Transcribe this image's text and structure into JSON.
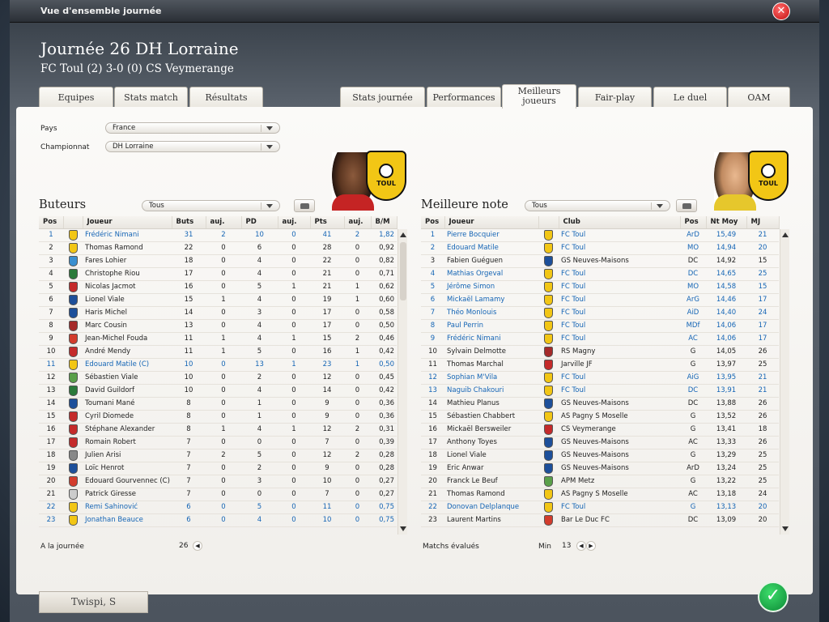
{
  "window": {
    "title": "Vue d'ensemble journée",
    "close_label": "✕"
  },
  "header": {
    "title": "Journée 26 DH Lorraine",
    "subtitle": "FC Toul (2) 3-0 (0) CS Veymerange"
  },
  "tabs_left": [
    "Equipes",
    "Stats match",
    "Résultats"
  ],
  "tabs_right": [
    "Stats journée",
    "Performances",
    "Meilleurs joueurs",
    "Fair-play",
    "Le duel",
    "OAM"
  ],
  "active_tab": "Meilleurs joueurs",
  "filters": {
    "country_label": "Pays",
    "country_value": "France",
    "championship_label": "Championnat",
    "championship_value": "DH Lorraine"
  },
  "club_crest_text": "TOUL",
  "scorers": {
    "title": "Buteurs",
    "filter_value": "Tous",
    "columns": [
      "Pos",
      "",
      "Joueur",
      "Buts",
      "auj.",
      "PD",
      "auj.",
      "Pts",
      "auj.",
      "B/M"
    ],
    "rows": [
      {
        "pos": "1",
        "name": "Frédéric Nimani",
        "b": "31",
        "ba": "2",
        "pd": "10",
        "pda": "0",
        "pts": "41",
        "pa": "2",
        "bm": "1,82",
        "hl": true,
        "club": "#f2c615"
      },
      {
        "pos": "2",
        "name": "Thomas Ramond",
        "b": "22",
        "ba": "0",
        "pd": "6",
        "pda": "0",
        "pts": "28",
        "pa": "0",
        "bm": "0,92",
        "hl": false,
        "club": "#f2c615"
      },
      {
        "pos": "3",
        "name": "Fares Lohier",
        "b": "18",
        "ba": "0",
        "pd": "4",
        "pda": "0",
        "pts": "22",
        "pa": "0",
        "bm": "0,82",
        "hl": false,
        "club": "#3a8fd0"
      },
      {
        "pos": "4",
        "name": "Christophe Riou",
        "b": "17",
        "ba": "0",
        "pd": "4",
        "pda": "0",
        "pts": "21",
        "pa": "0",
        "bm": "0,71",
        "hl": false,
        "club": "#2a7a3a"
      },
      {
        "pos": "5",
        "name": "Nicolas Jacmot",
        "b": "16",
        "ba": "0",
        "pd": "5",
        "pda": "1",
        "pts": "21",
        "pa": "1",
        "bm": "0,62",
        "hl": false,
        "club": "#c42a2a"
      },
      {
        "pos": "6",
        "name": "Lionel Viale",
        "b": "15",
        "ba": "1",
        "pd": "4",
        "pda": "0",
        "pts": "19",
        "pa": "1",
        "bm": "0,60",
        "hl": false,
        "club": "#1d4f9a"
      },
      {
        "pos": "7",
        "name": "Haris Michel",
        "b": "14",
        "ba": "0",
        "pd": "3",
        "pda": "0",
        "pts": "17",
        "pa": "0",
        "bm": "0,58",
        "hl": false,
        "club": "#1d4f9a"
      },
      {
        "pos": "8",
        "name": "Marc Cousin",
        "b": "13",
        "ba": "0",
        "pd": "4",
        "pda": "0",
        "pts": "17",
        "pa": "0",
        "bm": "0,50",
        "hl": false,
        "club": "#a52a2a"
      },
      {
        "pos": "9",
        "name": "Jean-Michel Fouda",
        "b": "11",
        "ba": "1",
        "pd": "4",
        "pda": "1",
        "pts": "15",
        "pa": "2",
        "bm": "0,46",
        "hl": false,
        "club": "#d23c2c"
      },
      {
        "pos": "10",
        "name": "André Mendy",
        "b": "11",
        "ba": "1",
        "pd": "5",
        "pda": "0",
        "pts": "16",
        "pa": "1",
        "bm": "0,42",
        "hl": false,
        "club": "#c42a2a"
      },
      {
        "pos": "11",
        "name": "Edouard Matile (C)",
        "b": "10",
        "ba": "0",
        "pd": "13",
        "pda": "1",
        "pts": "23",
        "pa": "1",
        "bm": "0,50",
        "hl": true,
        "club": "#f2c615"
      },
      {
        "pos": "12",
        "name": "Sébastien Viale",
        "b": "10",
        "ba": "0",
        "pd": "2",
        "pda": "0",
        "pts": "12",
        "pa": "0",
        "bm": "0,45",
        "hl": false,
        "club": "#5aa04a"
      },
      {
        "pos": "13",
        "name": "David Guildorf",
        "b": "10",
        "ba": "0",
        "pd": "4",
        "pda": "0",
        "pts": "14",
        "pa": "0",
        "bm": "0,42",
        "hl": false,
        "club": "#2a7a3a"
      },
      {
        "pos": "14",
        "name": "Toumani Mané",
        "b": "8",
        "ba": "0",
        "pd": "1",
        "pda": "0",
        "pts": "9",
        "pa": "0",
        "bm": "0,36",
        "hl": false,
        "club": "#1d4f9a"
      },
      {
        "pos": "15",
        "name": "Cyril Diomede",
        "b": "8",
        "ba": "0",
        "pd": "1",
        "pda": "0",
        "pts": "9",
        "pa": "0",
        "bm": "0,36",
        "hl": false,
        "club": "#c42a2a"
      },
      {
        "pos": "16",
        "name": "Stéphane Alexander",
        "b": "8",
        "ba": "1",
        "pd": "4",
        "pda": "1",
        "pts": "12",
        "pa": "2",
        "bm": "0,31",
        "hl": false,
        "club": "#c42a2a"
      },
      {
        "pos": "17",
        "name": "Romain Robert",
        "b": "7",
        "ba": "0",
        "pd": "0",
        "pda": "0",
        "pts": "7",
        "pa": "0",
        "bm": "0,39",
        "hl": false,
        "club": "#c42a2a"
      },
      {
        "pos": "18",
        "name": "Julien Arisi",
        "b": "7",
        "ba": "2",
        "pd": "5",
        "pda": "0",
        "pts": "12",
        "pa": "2",
        "bm": "0,28",
        "hl": false,
        "club": "#888888"
      },
      {
        "pos": "19",
        "name": "Loïc Henrot",
        "b": "7",
        "ba": "0",
        "pd": "2",
        "pda": "0",
        "pts": "9",
        "pa": "0",
        "bm": "0,28",
        "hl": false,
        "club": "#1d4f9a"
      },
      {
        "pos": "20",
        "name": "Edouard Gourvennec (C)",
        "b": "7",
        "ba": "0",
        "pd": "3",
        "pda": "0",
        "pts": "10",
        "pa": "0",
        "bm": "0,27",
        "hl": false,
        "club": "#d23c2c"
      },
      {
        "pos": "21",
        "name": "Patrick Giresse",
        "b": "7",
        "ba": "0",
        "pd": "0",
        "pda": "0",
        "pts": "7",
        "pa": "0",
        "bm": "0,27",
        "hl": false,
        "club": "#cccccc"
      },
      {
        "pos": "22",
        "name": "Remi Sahinović",
        "b": "6",
        "ba": "0",
        "pd": "5",
        "pda": "0",
        "pts": "11",
        "pa": "0",
        "bm": "0,75",
        "hl": true,
        "club": "#f2c615"
      },
      {
        "pos": "23",
        "name": "Jonathan Beauce",
        "b": "6",
        "ba": "0",
        "pd": "4",
        "pda": "0",
        "pts": "10",
        "pa": "0",
        "bm": "0,75",
        "hl": true,
        "club": "#f2c615"
      }
    ],
    "footer_label": "A la journée",
    "footer_value": "26"
  },
  "best_rating": {
    "title": "Meilleure note",
    "filter_value": "Tous",
    "columns": [
      "Pos",
      "Joueur",
      "",
      "Club",
      "Pos",
      "Nt Moy",
      "MJ"
    ],
    "rows": [
      {
        "pos": "1",
        "name": "Pierre Bocquier",
        "club": "FC Toul",
        "p": "ArD",
        "nt": "15,49",
        "mj": "21",
        "hl": true,
        "color": "#f2c615"
      },
      {
        "pos": "2",
        "name": "Edouard Matile",
        "club": "FC Toul",
        "p": "MO",
        "nt": "14,94",
        "mj": "20",
        "hl": true,
        "color": "#f2c615"
      },
      {
        "pos": "3",
        "name": "Fabien Guéguen",
        "club": "GS Neuves-Maisons",
        "p": "DC",
        "nt": "14,92",
        "mj": "15",
        "hl": false,
        "color": "#1d4f9a"
      },
      {
        "pos": "4",
        "name": "Mathias Orgeval",
        "club": "FC Toul",
        "p": "DC",
        "nt": "14,65",
        "mj": "25",
        "hl": true,
        "color": "#f2c615"
      },
      {
        "pos": "5",
        "name": "Jérôme Simon",
        "club": "FC Toul",
        "p": "MO",
        "nt": "14,58",
        "mj": "15",
        "hl": true,
        "color": "#f2c615"
      },
      {
        "pos": "6",
        "name": "Mickaël Lamamy",
        "club": "FC Toul",
        "p": "ArG",
        "nt": "14,46",
        "mj": "17",
        "hl": true,
        "color": "#f2c615"
      },
      {
        "pos": "7",
        "name": "Théo Monlouis",
        "club": "FC Toul",
        "p": "AiD",
        "nt": "14,40",
        "mj": "24",
        "hl": true,
        "color": "#f2c615"
      },
      {
        "pos": "8",
        "name": "Paul Perrin",
        "club": "FC Toul",
        "p": "MDf",
        "nt": "14,06",
        "mj": "17",
        "hl": true,
        "color": "#f2c615"
      },
      {
        "pos": "9",
        "name": "Frédéric Nimani",
        "club": "FC Toul",
        "p": "AC",
        "nt": "14,06",
        "mj": "17",
        "hl": true,
        "color": "#f2c615"
      },
      {
        "pos": "10",
        "name": "Sylvain Delmotte",
        "club": "RS Magny",
        "p": "G",
        "nt": "14,05",
        "mj": "26",
        "hl": false,
        "color": "#a52a2a"
      },
      {
        "pos": "11",
        "name": "Thomas Marchal",
        "club": "Jarville JF",
        "p": "G",
        "nt": "13,97",
        "mj": "25",
        "hl": false,
        "color": "#c42a2a"
      },
      {
        "pos": "12",
        "name": "Sophian M'Vila",
        "club": "FC Toul",
        "p": "AiG",
        "nt": "13,95",
        "mj": "21",
        "hl": true,
        "color": "#f2c615"
      },
      {
        "pos": "13",
        "name": "Naguib Chakouri",
        "club": "FC Toul",
        "p": "DC",
        "nt": "13,91",
        "mj": "21",
        "hl": true,
        "color": "#f2c615"
      },
      {
        "pos": "14",
        "name": "Mathieu Planus",
        "club": "GS Neuves-Maisons",
        "p": "DC",
        "nt": "13,88",
        "mj": "26",
        "hl": false,
        "color": "#1d4f9a"
      },
      {
        "pos": "15",
        "name": "Sébastien Chabbert",
        "club": "AS Pagny S Moselle",
        "p": "G",
        "nt": "13,52",
        "mj": "26",
        "hl": false,
        "color": "#f2c615"
      },
      {
        "pos": "16",
        "name": "Mickaël Bersweiler",
        "club": "CS Veymerange",
        "p": "G",
        "nt": "13,41",
        "mj": "18",
        "hl": false,
        "color": "#c42a2a"
      },
      {
        "pos": "17",
        "name": "Anthony Toyes",
        "club": "GS Neuves-Maisons",
        "p": "AC",
        "nt": "13,33",
        "mj": "26",
        "hl": false,
        "color": "#1d4f9a"
      },
      {
        "pos": "18",
        "name": "Lionel Viale",
        "club": "GS Neuves-Maisons",
        "p": "G",
        "nt": "13,29",
        "mj": "25",
        "hl": false,
        "color": "#1d4f9a"
      },
      {
        "pos": "19",
        "name": "Eric Anwar",
        "club": "GS Neuves-Maisons",
        "p": "ArD",
        "nt": "13,24",
        "mj": "25",
        "hl": false,
        "color": "#1d4f9a"
      },
      {
        "pos": "20",
        "name": "Franck Le Beuf",
        "club": "APM Metz",
        "p": "G",
        "nt": "13,22",
        "mj": "25",
        "hl": false,
        "color": "#5aa04a"
      },
      {
        "pos": "21",
        "name": "Thomas Ramond",
        "club": "AS Pagny S Moselle",
        "p": "AC",
        "nt": "13,18",
        "mj": "24",
        "hl": false,
        "color": "#f2c615"
      },
      {
        "pos": "22",
        "name": "Donovan Delplanque",
        "club": "FC Toul",
        "p": "G",
        "nt": "13,13",
        "mj": "20",
        "hl": true,
        "color": "#f2c615"
      },
      {
        "pos": "23",
        "name": "Laurent Martins",
        "club": "Bar Le Duc FC",
        "p": "DC",
        "nt": "13,09",
        "mj": "20",
        "hl": false,
        "color": "#d23c2c"
      }
    ],
    "footer_label": "Matchs évalués",
    "min_label": "Min",
    "min_value": "13"
  },
  "user": {
    "name": "Twispi, S"
  },
  "confirm_label": "✓"
}
